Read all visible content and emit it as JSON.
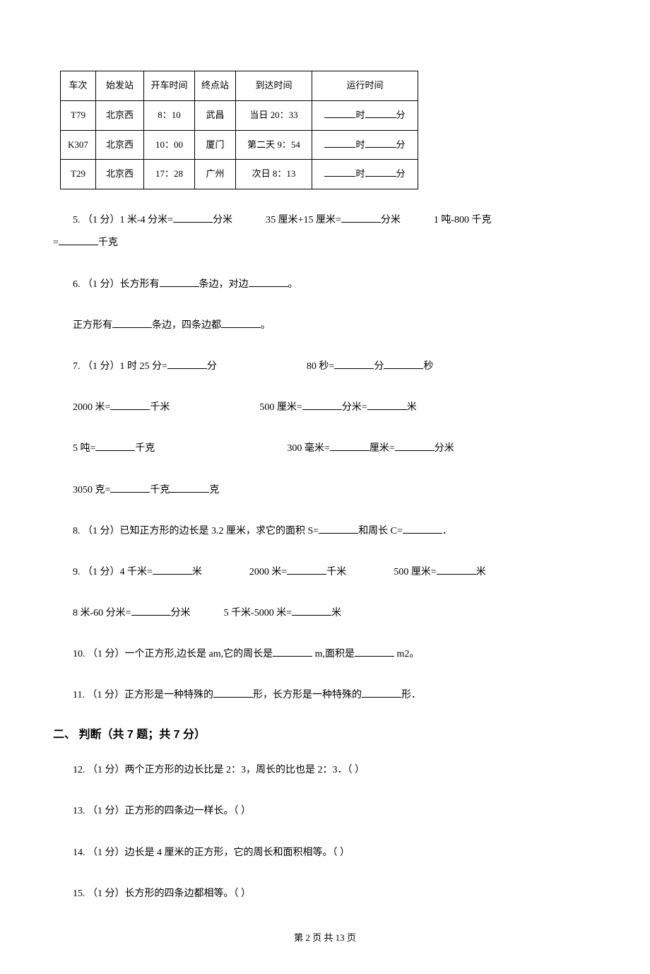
{
  "table": {
    "headers": [
      "车次",
      "始发站",
      "开车时间",
      "终点站",
      "到达时间",
      "运行时间"
    ],
    "rows": [
      {
        "train": "T79",
        "from": "北京西",
        "depart": "8：10",
        "to": "武昌",
        "arrive": "当日 20：33",
        "h_label": "时",
        "m_label": "分"
      },
      {
        "train": "K307",
        "from": "北京西",
        "depart": "10：00",
        "to": "厦门",
        "arrive": "第二天 9：54",
        "h_label": "时",
        "m_label": "分"
      },
      {
        "train": "T29",
        "from": "北京西",
        "depart": "17：28",
        "to": "广州",
        "arrive": "次日 8：13",
        "h_label": "时",
        "m_label": "分"
      }
    ]
  },
  "q5": {
    "prefix": "5. （1 分）1 米-4 分米=",
    "p1_suffix": "分米",
    "p2_prefix": "35 厘米+15 厘米=",
    "p2_suffix": "分米",
    "p3_prefix": "1 吨-800 千克",
    "cont": "=",
    "p3_suffix": "千克"
  },
  "q6": {
    "line1a": "6. （1 分）长方形有",
    "line1b": "条边，对边",
    "line1c": "。",
    "line2a": "正方形有",
    "line2b": "条边，四条边都",
    "line2c": "。"
  },
  "q7": {
    "a1": "7. （1 分）1 时 25 分=",
    "a1s": "分",
    "b1": "80 秒=",
    "b1s1": "分",
    "b1s2": "秒",
    "c1": "2000 米=",
    "c1s": "千米",
    "d1": "500 厘米=",
    "d1s1": "分米=",
    "d1s2": "米",
    "e1": "5 吨=",
    "e1s": "千克",
    "f1": "300 毫米=",
    "f1s1": "厘米=",
    "f1s2": "分米",
    "g1": "3050 克=",
    "g1s1": "千克",
    "g1s2": "克"
  },
  "q8": {
    "a": "8. （1 分）已知正方形的边长是 3.2 厘米，求它的面积 S=",
    "b": "和周长 C=",
    "c": "．"
  },
  "q9": {
    "a1": "9. （1 分）4 千米=",
    "a1s": "米",
    "b1": "2000 米=",
    "b1s": "千米",
    "c1": "500 厘米=",
    "c1s": "米",
    "d1": "8 米-60 分米=",
    "d1s": "分米",
    "e1": "5 千米-5000 米=",
    "e1s": "米"
  },
  "q10": {
    "a": "10. （1 分）一个正方形,边长是 am,它的周长是",
    "b": " m,面积是",
    "c": " m2。"
  },
  "q11": {
    "a": "11. （1 分）正方形是一种特殊的",
    "b": "形，长方形是一种特殊的",
    "c": "形．"
  },
  "section2": "二、 判断（共 7 题；共 7 分）",
  "q12": "12. （1 分）两个正方形的边长比是 2：3，周长的比也是 2：3．（     ）",
  "q13": "13. （1 分）正方形的四条边一样长。（     ）",
  "q14": "14. （1 分）边长是 4 厘米的正方形，它的周长和面积相等。（     ）",
  "q15": "15. （1 分）长方形的四条边都相等。（     ）",
  "footer": "第 2 页 共 13 页"
}
